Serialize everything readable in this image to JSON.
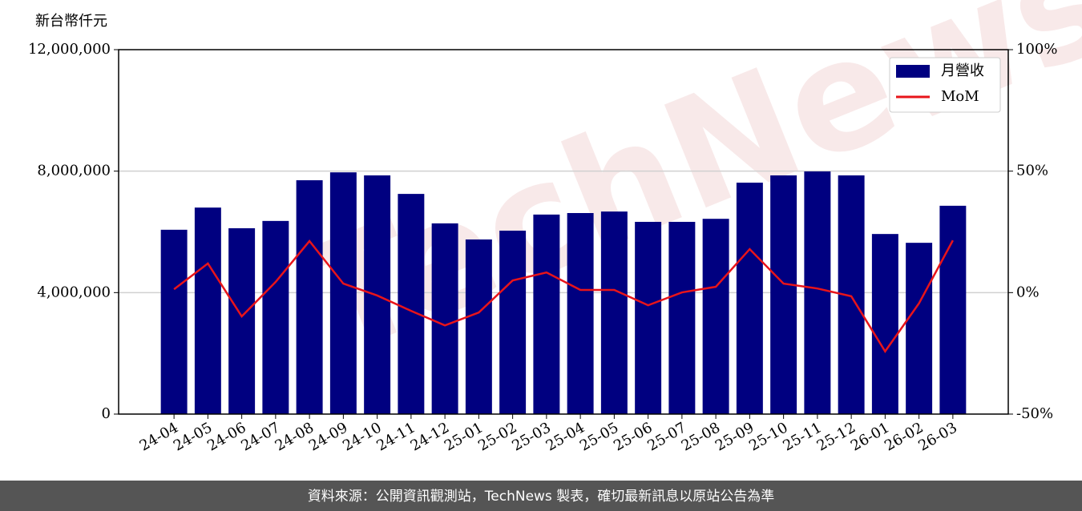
{
  "chart_data": {
    "type": "bar_line",
    "y_axis_label": "新台幣仟元",
    "categories": [
      "24-04",
      "24-05",
      "24-06",
      "24-07",
      "24-08",
      "24-09",
      "24-10",
      "24-11",
      "24-12",
      "25-01",
      "25-02",
      "25-03",
      "25-04",
      "25-05",
      "25-06",
      "25-07",
      "25-08",
      "25-09",
      "25-10",
      "25-11",
      "25-12",
      "26-01",
      "26-02",
      "26-03"
    ],
    "series": [
      {
        "name": "月營收",
        "type": "bar",
        "color": "#000080",
        "values": [
          6070000,
          6800000,
          6120000,
          6360000,
          7700000,
          7960000,
          7860000,
          7250000,
          6280000,
          5750000,
          6040000,
          6570000,
          6620000,
          6670000,
          6330000,
          6330000,
          6430000,
          7620000,
          7860000,
          7990000,
          7860000,
          5930000,
          5640000,
          6860000
        ]
      },
      {
        "name": "MoM",
        "type": "line",
        "axis": "y2",
        "color": "#e8141a",
        "values": [
          1.4,
          12,
          -9.8,
          4.4,
          21.2,
          3.7,
          -1.2,
          -7.5,
          -13.5,
          -8.2,
          5,
          8.3,
          1.1,
          1.1,
          -5.2,
          0.1,
          2.4,
          17.9,
          3.7,
          1.7,
          -1.5,
          -24.2,
          -4.4,
          21.5
        ]
      }
    ],
    "ylim": [
      0,
      12000000
    ],
    "yticks": [
      {
        "value": 0,
        "label": "0"
      },
      {
        "value": 4000000,
        "label": "4,000,000"
      },
      {
        "value": 8000000,
        "label": "8,000,000"
      },
      {
        "value": 12000000,
        "label": "12,000,000"
      }
    ],
    "y2lim": [
      -50,
      100
    ],
    "y2ticks": [
      {
        "value": -50,
        "label": "-50%"
      },
      {
        "value": 0,
        "label": "0%"
      },
      {
        "value": 50,
        "label": "50%"
      },
      {
        "value": 100,
        "label": "100%"
      }
    ],
    "grid": true,
    "legend": "upper right",
    "watermark": "TechNews",
    "footer": "資料來源：公開資訊觀測站，TechNews 製表，確切最新訊息以原站公告為準"
  }
}
